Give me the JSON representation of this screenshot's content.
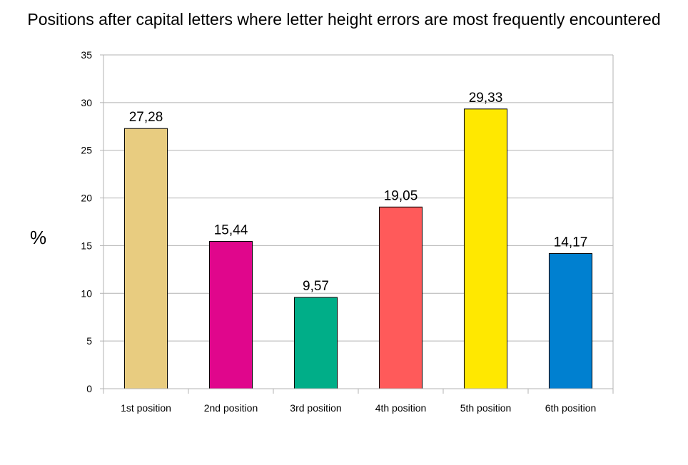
{
  "chart_data": {
    "type": "bar",
    "title": "Positions after capital letters where letter height errors are most frequently encountered",
    "xlabel": "",
    "ylabel": "%",
    "ylim": [
      0,
      35
    ],
    "yticks": [
      0,
      5,
      10,
      15,
      20,
      25,
      30,
      35
    ],
    "grid": true,
    "categories": [
      "1st position",
      "2nd position",
      "3rd position",
      "4th position",
      "5th position",
      "6th position"
    ],
    "values": [
      27.28,
      15.44,
      9.57,
      19.05,
      29.33,
      14.17
    ],
    "value_labels": [
      "27,28",
      "15,44",
      "9,57",
      "19,05",
      "29,33",
      "14,17"
    ],
    "colors": [
      "#e8cc80",
      "#e0068c",
      "#00ae88",
      "#ff5a5a",
      "#ffe800",
      "#0080d0"
    ]
  }
}
